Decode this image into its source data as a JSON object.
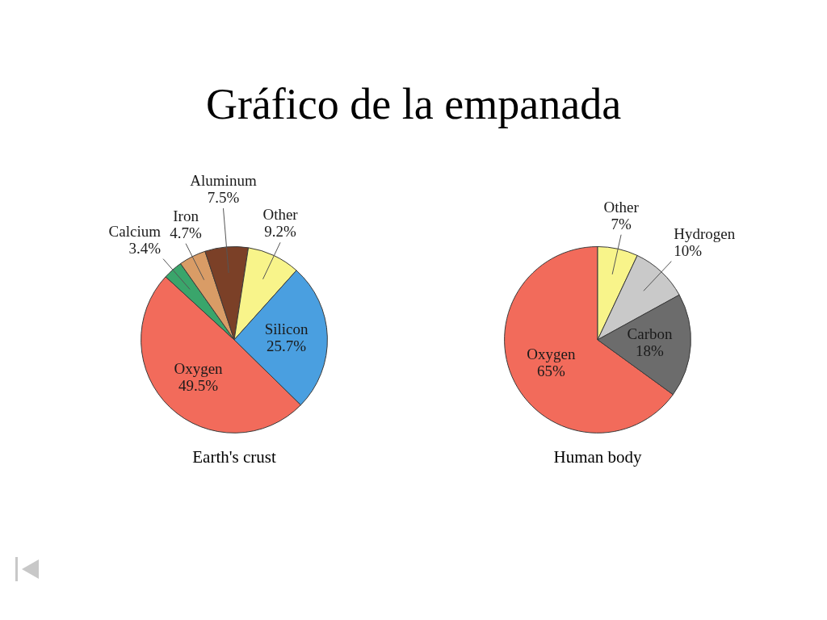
{
  "chart_data": [
    {
      "type": "other",
      "title": "Gráfico de la empanada"
    },
    {
      "type": "pie",
      "title": "Earth's crust",
      "categories": [
        "Oxygen",
        "Calcium",
        "Iron",
        "Aluminum",
        "Other",
        "Silicon"
      ],
      "values": [
        49.5,
        3.4,
        4.7,
        7.5,
        9.2,
        25.7
      ],
      "colors": [
        "#f26b5b",
        "#3aa56b",
        "#d99c66",
        "#7b4027",
        "#f8f48a",
        "#4a9fe0"
      ],
      "value_labels": [
        "49.5%",
        "3.4%",
        "4.7%",
        "7.5%",
        "9.2%",
        "25.7%"
      ]
    },
    {
      "type": "pie",
      "title": "Human body",
      "categories": [
        "Oxygen",
        "Other",
        "Hydrogen",
        "Carbon"
      ],
      "values": [
        65,
        7,
        10,
        18
      ],
      "colors": [
        "#f26b5b",
        "#f8f48a",
        "#c9c9c9",
        "#6c6c6c"
      ],
      "value_labels": [
        "65%",
        "7%",
        "10%",
        "18%"
      ]
    }
  ]
}
